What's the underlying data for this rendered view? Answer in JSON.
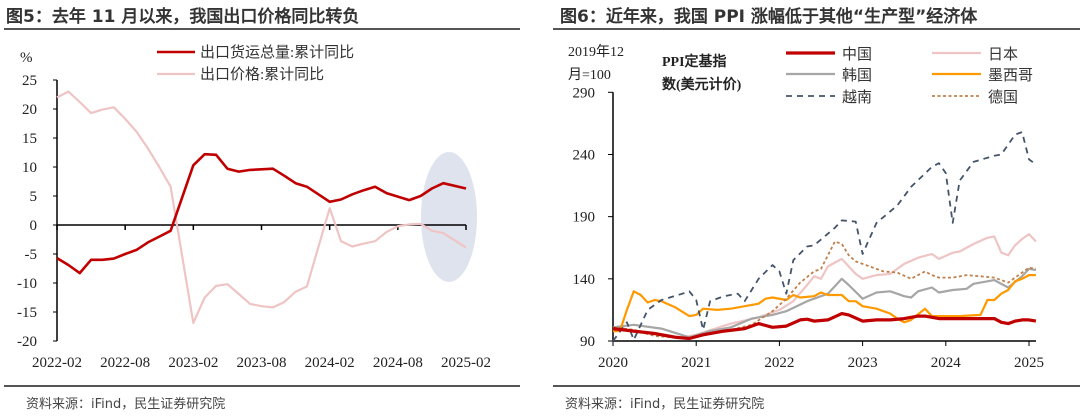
{
  "left": {
    "title": "图5：去年 11 月以来，我国出口价格同比转负",
    "source": "资料来源：iFind，民生证券研究院"
  },
  "right": {
    "title": "图6：近年来，我国 PPI 涨幅低于其他“生产型”经济体",
    "source": "资料来源：iFind，民生证券研究院"
  },
  "chart_data": [
    {
      "type": "line",
      "ylabel": "%",
      "ylim": [
        -20,
        25
      ],
      "yticks": [
        "25",
        "20",
        "15",
        "10",
        "5",
        "0",
        "-5",
        "-10",
        "-15",
        "-20"
      ],
      "xticks": [
        "2022-02",
        "2022-08",
        "2023-02",
        "2023-08",
        "2024-02",
        "2024-08",
        "2025-02"
      ],
      "legend_position": "top",
      "highlight": "ellipse over 2024-10 to 2025-02",
      "series": [
        {
          "name": "出口货运总量:累计同比",
          "color": "#c00000",
          "x": [
            "2022-02",
            "2022-03",
            "2022-04",
            "2022-05",
            "2022-06",
            "2022-07",
            "2022-08",
            "2022-09",
            "2022-10",
            "2022-11",
            "2022-12",
            "2023-02",
            "2023-03",
            "2023-04",
            "2023-05",
            "2023-06",
            "2023-07",
            "2023-08",
            "2023-09",
            "2023-10",
            "2023-11",
            "2023-12",
            "2024-02",
            "2024-03",
            "2024-04",
            "2024-05",
            "2024-06",
            "2024-07",
            "2024-08",
            "2024-09",
            "2024-10",
            "2024-11",
            "2024-12",
            "2025-02"
          ],
          "values": [
            -5.7,
            -6.9,
            -8.3,
            -6.0,
            -6.0,
            -5.8,
            -5.0,
            -4.3,
            -3.0,
            -2.0,
            -1.0,
            10.3,
            12.2,
            12.1,
            9.7,
            9.2,
            9.5,
            9.6,
            9.7,
            8.5,
            7.2,
            6.6,
            4.0,
            4.4,
            5.3,
            6.0,
            6.6,
            5.5,
            4.9,
            4.3,
            5.0,
            6.3,
            7.2,
            6.3
          ]
        },
        {
          "name": "出口价格:累计同比",
          "color": "#efc4c4",
          "x": [
            "2022-02",
            "2022-03",
            "2022-04",
            "2022-05",
            "2022-06",
            "2022-07",
            "2022-08",
            "2022-09",
            "2022-10",
            "2022-11",
            "2022-12",
            "2023-02",
            "2023-03",
            "2023-04",
            "2023-05",
            "2023-06",
            "2023-07",
            "2023-08",
            "2023-09",
            "2023-10",
            "2023-11",
            "2023-12",
            "2024-02",
            "2024-03",
            "2024-04",
            "2024-05",
            "2024-06",
            "2024-07",
            "2024-08",
            "2024-09",
            "2024-10",
            "2024-11",
            "2024-12",
            "2025-02"
          ],
          "values": [
            22.0,
            23.0,
            21.2,
            19.3,
            19.9,
            20.3,
            18.3,
            16.1,
            13.2,
            10.0,
            6.6,
            -16.9,
            -12.5,
            -10.5,
            -10.2,
            -11.9,
            -13.6,
            -14.0,
            -14.2,
            -13.3,
            -11.5,
            -10.6,
            2.9,
            -2.8,
            -3.7,
            -3.2,
            -2.8,
            -1.2,
            -0.2,
            0.1,
            0.2,
            -1.0,
            -1.4,
            -3.9
          ]
        }
      ]
    },
    {
      "type": "line",
      "title": "PPI定基指数(美元计价)",
      "ylabel": "2019年12月=100",
      "ylabel_lines": [
        "2019年12",
        "月=100"
      ],
      "title_lines": [
        "PPI定基指",
        "数(美元计价)"
      ],
      "ylim": [
        90,
        290
      ],
      "yticks": [
        "290",
        "240",
        "190",
        "140",
        "90"
      ],
      "xticks": [
        "2020",
        "2021",
        "2022",
        "2023",
        "2024",
        "2025"
      ],
      "legend_position": "top",
      "series": [
        {
          "name": "中国",
          "color": "#c00000",
          "style": "solid-thick",
          "x": [
            "2020-01",
            "2020-04",
            "2020-07",
            "2020-10",
            "2020-12",
            "2021-02",
            "2021-05",
            "2021-08",
            "2021-10",
            "2021-12",
            "2022-02",
            "2022-04",
            "2022-05",
            "2022-06",
            "2022-08",
            "2022-10",
            "2022-11",
            "2023-01",
            "2023-03",
            "2023-05",
            "2023-07",
            "2023-09",
            "2023-10",
            "2023-12",
            "2024-03",
            "2024-06",
            "2024-08",
            "2024-09",
            "2024-10",
            "2024-11",
            "2024-12",
            "2025-01",
            "2025-02"
          ],
          "values": [
            100,
            98,
            96,
            93,
            92,
            95,
            98,
            100,
            104,
            101,
            102,
            107,
            107.5,
            106,
            107,
            112,
            111,
            106,
            107,
            107,
            108,
            110,
            110,
            108,
            108,
            108,
            108,
            105,
            104,
            106,
            107,
            107,
            106
          ]
        },
        {
          "name": "日本",
          "color": "#efc4c4",
          "style": "solid",
          "x": [
            "2020-01",
            "2020-06",
            "2020-11",
            "2021-01",
            "2021-06",
            "2021-10",
            "2022-01",
            "2022-03",
            "2022-05",
            "2022-06",
            "2022-07",
            "2022-08",
            "2022-10",
            "2022-12",
            "2023-01",
            "2023-03",
            "2023-05",
            "2023-07",
            "2023-09",
            "2023-11",
            "2023-12",
            "2024-02",
            "2024-03",
            "2024-05",
            "2024-07",
            "2024-08",
            "2024-09",
            "2024-10",
            "2024-11",
            "2024-12",
            "2025-01",
            "2025-02"
          ],
          "values": [
            100,
            97,
            93,
            95,
            104,
            109,
            115,
            122,
            135,
            142,
            140,
            150,
            156,
            144,
            140,
            143,
            144,
            152,
            157,
            160,
            156,
            161,
            162,
            168,
            173,
            174,
            161,
            159,
            167,
            172,
            176,
            170
          ]
        },
        {
          "name": "韩国",
          "color": "#a6a6a6",
          "style": "solid",
          "x": [
            "2020-01",
            "2020-04",
            "2020-08",
            "2020-12",
            "2021-03",
            "2021-06",
            "2021-09",
            "2021-12",
            "2022-02",
            "2022-05",
            "2022-07",
            "2022-08",
            "2022-10",
            "2022-11",
            "2023-01",
            "2023-03",
            "2023-05",
            "2023-07",
            "2023-08",
            "2023-09",
            "2023-11",
            "2023-12",
            "2024-02",
            "2024-04",
            "2024-05",
            "2024-07",
            "2024-08",
            "2024-10",
            "2024-12",
            "2025-01",
            "2025-02"
          ],
          "values": [
            101,
            103,
            100,
            93,
            98,
            101,
            108,
            111,
            114,
            122,
            126,
            128,
            140,
            135,
            124,
            129,
            130,
            126,
            125,
            130,
            133,
            129,
            131,
            132,
            136,
            138,
            139,
            133,
            142,
            148,
            147
          ]
        },
        {
          "name": "墨西哥",
          "color": "#ff9900",
          "style": "solid",
          "x": [
            "2020-01",
            "2020-02",
            "2020-03",
            "2020-04",
            "2020-05",
            "2020-06",
            "2020-07",
            "2020-08",
            "2020-10",
            "2020-12",
            "2021-01",
            "2021-02",
            "2021-04",
            "2021-06",
            "2021-08",
            "2021-10",
            "2021-11",
            "2021-12",
            "2022-02",
            "2022-03",
            "2022-04",
            "2022-06",
            "2022-07",
            "2022-08",
            "2022-10",
            "2022-11",
            "2022-12",
            "2023-01",
            "2023-03",
            "2023-05",
            "2023-06",
            "2023-07",
            "2023-08",
            "2023-10",
            "2023-11",
            "2024-01",
            "2024-03",
            "2024-06",
            "2024-07",
            "2024-08",
            "2024-09",
            "2024-10",
            "2024-11",
            "2024-12",
            "2025-01",
            "2025-02"
          ],
          "values": [
            98,
            98,
            115,
            130,
            127,
            121,
            123,
            122,
            117,
            110,
            111,
            116,
            115,
            116,
            118,
            120,
            124,
            125,
            123,
            127,
            125,
            126,
            129,
            127,
            127,
            122,
            122,
            118,
            116,
            112,
            108,
            105,
            107,
            116,
            110,
            110,
            110,
            111,
            123,
            123,
            128,
            131,
            138,
            140,
            143,
            143
          ]
        },
        {
          "name": "越南",
          "color": "#44546a",
          "style": "dashed",
          "x": [
            "2020-01",
            "2020-03",
            "2020-04",
            "2020-06",
            "2020-08",
            "2020-11",
            "2020-12",
            "2021-01",
            "2021-02",
            "2021-03",
            "2021-05",
            "2021-07",
            "2021-08",
            "2021-10",
            "2021-12",
            "2022-01",
            "2022-02",
            "2022-03",
            "2022-05",
            "2022-06",
            "2022-09",
            "2022-10",
            "2022-12",
            "2023-01",
            "2023-03",
            "2023-06",
            "2023-08",
            "2023-11",
            "2023-12",
            "2024-01",
            "2024-02",
            "2024-03",
            "2024-05",
            "2024-08",
            "2024-09",
            "2024-11",
            "2024-12",
            "2025-01",
            "2025-02"
          ],
          "values": [
            90,
            105,
            91,
            115,
            123,
            128,
            130,
            123,
            99,
            122,
            126,
            128,
            122,
            140,
            151,
            146,
            128,
            155,
            166,
            167,
            181,
            187,
            186,
            160,
            185,
            199,
            214,
            230,
            233,
            225,
            185,
            219,
            234,
            239,
            240,
            256,
            258,
            236,
            232
          ]
        },
        {
          "name": "德国",
          "color": "#c0804d",
          "style": "dotted",
          "x": [
            "2020-01",
            "2020-04",
            "2020-07",
            "2020-12",
            "2021-03",
            "2021-06",
            "2021-09",
            "2021-12",
            "2022-02",
            "2022-04",
            "2022-06",
            "2022-07",
            "2022-09",
            "2022-10",
            "2022-11",
            "2022-12",
            "2023-02",
            "2023-04",
            "2023-06",
            "2023-08",
            "2023-10",
            "2023-11",
            "2023-12",
            "2024-02",
            "2024-04",
            "2024-06",
            "2024-08",
            "2024-10",
            "2024-12",
            "2025-01",
            "2025-02"
          ],
          "values": [
            101,
            99,
            94,
            92,
            96,
            99,
            103,
            114,
            124,
            137,
            146,
            148,
            170,
            168,
            159,
            154,
            150,
            146,
            145,
            140,
            146,
            143,
            141,
            141,
            143,
            142,
            141,
            137,
            145,
            149,
            148
          ]
        }
      ]
    }
  ]
}
